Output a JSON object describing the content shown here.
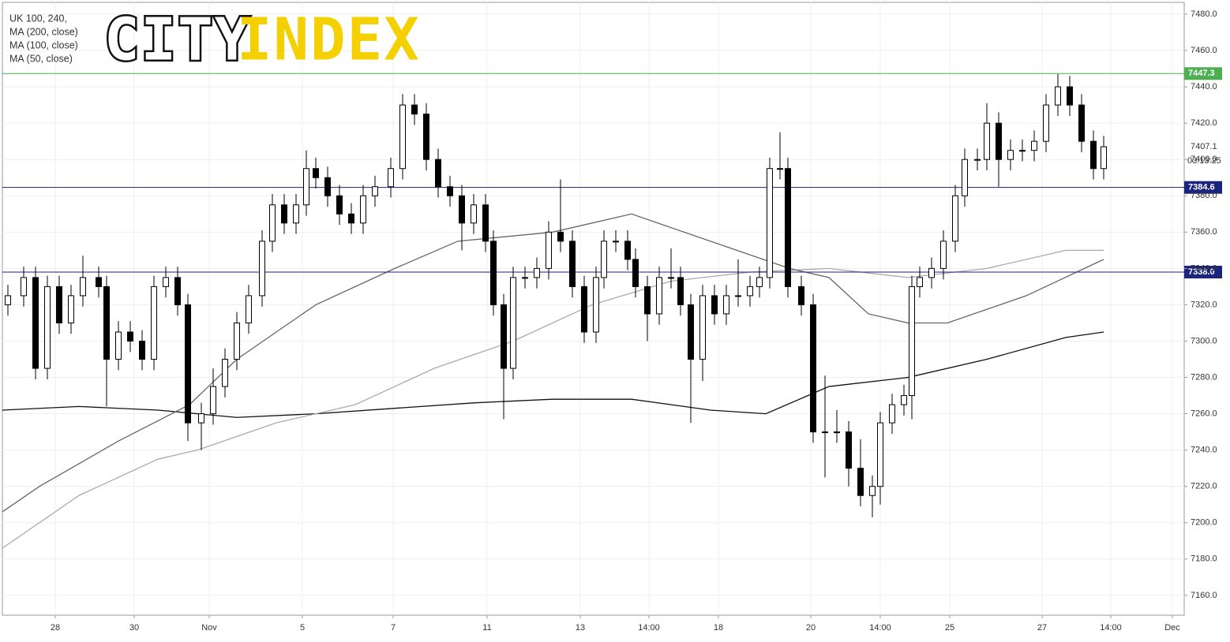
{
  "logo": {
    "part1": "CITY",
    "part2": "INDEX"
  },
  "chart_data": {
    "type": "candlestick",
    "title": "UK 100, 240,",
    "x": [
      10,
      30,
      45,
      60,
      75,
      90,
      105,
      125,
      135,
      150,
      165,
      180,
      195,
      210,
      225,
      238,
      255,
      270,
      285,
      300,
      315,
      332,
      345,
      360,
      375,
      388,
      400,
      415,
      430,
      445,
      460,
      475,
      495,
      510,
      525,
      540,
      555,
      570,
      585,
      600,
      615,
      625,
      638,
      650,
      665,
      680,
      695,
      710,
      725,
      740,
      755,
      765,
      780,
      795,
      805,
      820,
      835,
      850,
      862,
      875,
      890,
      905,
      920,
      935,
      950,
      962,
      975,
      988,
      998,
      1015,
      1030,
      1045,
      1060,
      1075,
      1090,
      1105,
      1115,
      1130,
      1145,
      1155,
      1165,
      1180,
      1195,
      1210,
      1222,
      1238,
      1250,
      1265,
      1280,
      1295,
      1310,
      1325,
      1340,
      1355,
      1370,
      1385,
      1398
    ],
    "open": [
      7320,
      7325,
      7335,
      7285,
      7330,
      7310,
      7325,
      7335,
      7330,
      7290,
      7305,
      7300,
      7290,
      7330,
      7335,
      7320,
      7255,
      7260,
      7275,
      7290,
      7310,
      7325,
      7355,
      7375,
      7365,
      7375,
      7395,
      7390,
      7380,
      7370,
      7365,
      7380,
      7385,
      7395,
      7430,
      7425,
      7400,
      7385,
      7380,
      7365,
      7375,
      7355,
      7320,
      7285,
      7335,
      7335,
      7340,
      7360,
      7355,
      7330,
      7305,
      7335,
      7355,
      7355,
      7345,
      7330,
      7315,
      7335,
      7335,
      7320,
      7290,
      7325,
      7315,
      7325,
      7325,
      7330,
      7335,
      7395,
      7395,
      7330,
      7320,
      7250,
      7250,
      7250,
      7230,
      7215,
      7220,
      7255,
      7265,
      7270,
      7330,
      7335,
      7340,
      7355,
      7380,
      7400,
      7400,
      7420,
      7400,
      7405,
      7405,
      7410,
      7430,
      7440,
      7430,
      7410,
      7395
    ],
    "high": [
      7331,
      7341,
      7341,
      7336,
      7336,
      7331,
      7347,
      7341,
      7336,
      7311,
      7311,
      7306,
      7336,
      7341,
      7341,
      7326,
      7266,
      7285,
      7296,
      7316,
      7331,
      7361,
      7381,
      7381,
      7381,
      7405,
      7401,
      7396,
      7386,
      7376,
      7386,
      7391,
      7401,
      7436,
      7436,
      7431,
      7406,
      7391,
      7386,
      7381,
      7381,
      7361,
      7326,
      7341,
      7341,
      7346,
      7366,
      7389,
      7361,
      7336,
      7341,
      7361,
      7361,
      7361,
      7351,
      7336,
      7341,
      7351,
      7341,
      7326,
      7331,
      7331,
      7331,
      7345,
      7336,
      7341,
      7401,
      7415,
      7401,
      7336,
      7326,
      7281,
      7262,
      7256,
      7246,
      7226,
      7261,
      7271,
      7276,
      7336,
      7341,
      7346,
      7361,
      7386,
      7406,
      7406,
      7431,
      7426,
      7411,
      7411,
      7416,
      7436,
      7447,
      7446,
      7436,
      7416,
      7413
    ],
    "low": [
      7314,
      7319,
      7279,
      7279,
      7304,
      7304,
      7319,
      7324,
      7264,
      7284,
      7294,
      7284,
      7284,
      7324,
      7314,
      7245,
      7240,
      7254,
      7269,
      7284,
      7304,
      7319,
      7349,
      7359,
      7359,
      7369,
      7384,
      7374,
      7364,
      7359,
      7359,
      7374,
      7379,
      7389,
      7419,
      7394,
      7379,
      7374,
      7350,
      7359,
      7349,
      7314,
      7257,
      7279,
      7329,
      7329,
      7334,
      7349,
      7324,
      7299,
      7299,
      7329,
      7349,
      7339,
      7324,
      7300,
      7309,
      7329,
      7314,
      7255,
      7278,
      7309,
      7309,
      7319,
      7319,
      7324,
      7329,
      7389,
      7324,
      7314,
      7244,
      7225,
      7244,
      7220,
      7209,
      7203,
      7210,
      7249,
      7259,
      7257,
      7324,
      7329,
      7334,
      7349,
      7374,
      7394,
      7394,
      7385,
      7394,
      7399,
      7399,
      7404,
      7424,
      7424,
      7404,
      7389,
      7389
    ],
    "close": [
      7325,
      7335,
      7285,
      7330,
      7310,
      7325,
      7335,
      7330,
      7290,
      7305,
      7300,
      7290,
      7330,
      7335,
      7320,
      7255,
      7260,
      7275,
      7290,
      7310,
      7325,
      7355,
      7375,
      7365,
      7375,
      7395,
      7390,
      7380,
      7370,
      7365,
      7380,
      7385,
      7395,
      7430,
      7425,
      7400,
      7385,
      7380,
      7365,
      7375,
      7355,
      7320,
      7285,
      7335,
      7335,
      7340,
      7360,
      7355,
      7330,
      7305,
      7335,
      7355,
      7355,
      7345,
      7330,
      7315,
      7335,
      7335,
      7320,
      7290,
      7325,
      7315,
      7325,
      7325,
      7330,
      7335,
      7395,
      7395,
      7330,
      7320,
      7250,
      7250,
      7250,
      7230,
      7215,
      7220,
      7255,
      7265,
      7270,
      7330,
      7335,
      7340,
      7355,
      7380,
      7400,
      7400,
      7420,
      7400,
      7405,
      7405,
      7410,
      7430,
      7440,
      7430,
      7410,
      7395,
      7407
    ],
    "lines": [
      {
        "name": "MA (200, close)",
        "color": "#111111",
        "x": [
          3,
          100,
          200,
          300,
          400,
          500,
          600,
          700,
          800,
          900,
          970,
          1050,
          1150,
          1250,
          1350,
          1398
        ],
        "values": [
          7262,
          7264,
          7262,
          7258,
          7260,
          7263,
          7266,
          7268,
          7268,
          7262,
          7260,
          7275,
          7280,
          7290,
          7302,
          7305
        ]
      },
      {
        "name": "MA (100, close)",
        "color": "#aaaaaa",
        "x": [
          3,
          100,
          200,
          250,
          350,
          450,
          550,
          650,
          750,
          850,
          950,
          1050,
          1150,
          1250,
          1350,
          1398
        ],
        "values": [
          7186,
          7215,
          7235,
          7240,
          7255,
          7265,
          7285,
          7300,
          7320,
          7333,
          7338,
          7340,
          7335,
          7340,
          7350,
          7350
        ]
      },
      {
        "name": "MA (50, close)",
        "color": "#666666",
        "x": [
          3,
          50,
          150,
          240,
          300,
          400,
          500,
          580,
          700,
          800,
          900,
          1000,
          1050,
          1100,
          1150,
          1200,
          1300,
          1398
        ],
        "values": [
          7206,
          7220,
          7245,
          7265,
          7290,
          7320,
          7340,
          7355,
          7360,
          7370,
          7355,
          7340,
          7335,
          7315,
          7310,
          7310,
          7325,
          7345
        ]
      }
    ],
    "hlines": [
      {
        "value": 7447.3,
        "label": "7447.3",
        "color": "#4caf50"
      },
      {
        "value": 7384.6,
        "label": "7384.6",
        "color": "#1a237e"
      },
      {
        "value": 7338.0,
        "label": "7338.0",
        "color": "#1a237e"
      }
    ],
    "last_price": {
      "value": 7407.1,
      "label": "7407.1"
    },
    "countdown": "03:13:25",
    "xlim": [
      3,
      1500
    ],
    "ylim": [
      7149.1,
      7486.5
    ],
    "yticks": [
      {
        "value": 7160,
        "label": "7160.0"
      },
      {
        "value": 7180,
        "label": "7180.0"
      },
      {
        "value": 7200,
        "label": "7200.0"
      },
      {
        "value": 7220,
        "label": "7220.0"
      },
      {
        "value": 7240,
        "label": "7240.0"
      },
      {
        "value": 7260,
        "label": "7260.0"
      },
      {
        "value": 7280,
        "label": "7280.0"
      },
      {
        "value": 7300,
        "label": "7300.0"
      },
      {
        "value": 7320,
        "label": "7320.0"
      },
      {
        "value": 7340,
        "label": "7340.0"
      },
      {
        "value": 7360,
        "label": "7360.0"
      },
      {
        "value": 7380,
        "label": "7380.0"
      },
      {
        "value": 7400,
        "label": "7400.0"
      },
      {
        "value": 7420,
        "label": "7420.0"
      },
      {
        "value": 7440,
        "label": "7440.0"
      },
      {
        "value": 7460,
        "label": "7460.0"
      },
      {
        "value": 7480,
        "label": "7480.0"
      }
    ],
    "xticks": [
      {
        "value": 70,
        "label": "28"
      },
      {
        "value": 170,
        "label": "30"
      },
      {
        "value": 265,
        "label": "Nov"
      },
      {
        "value": 383,
        "label": "5"
      },
      {
        "value": 498,
        "label": "7"
      },
      {
        "value": 617,
        "label": "11"
      },
      {
        "value": 735,
        "label": "13"
      },
      {
        "value": 822,
        "label": "14:00"
      },
      {
        "value": 910,
        "label": "18"
      },
      {
        "value": 1027,
        "label": "20"
      },
      {
        "value": 1115,
        "label": "14:00"
      },
      {
        "value": 1203,
        "label": "25"
      },
      {
        "value": 1320,
        "label": "27"
      },
      {
        "value": 1407,
        "label": "14:00"
      },
      {
        "value": 1485,
        "label": "Dec"
      }
    ],
    "grid": true
  }
}
